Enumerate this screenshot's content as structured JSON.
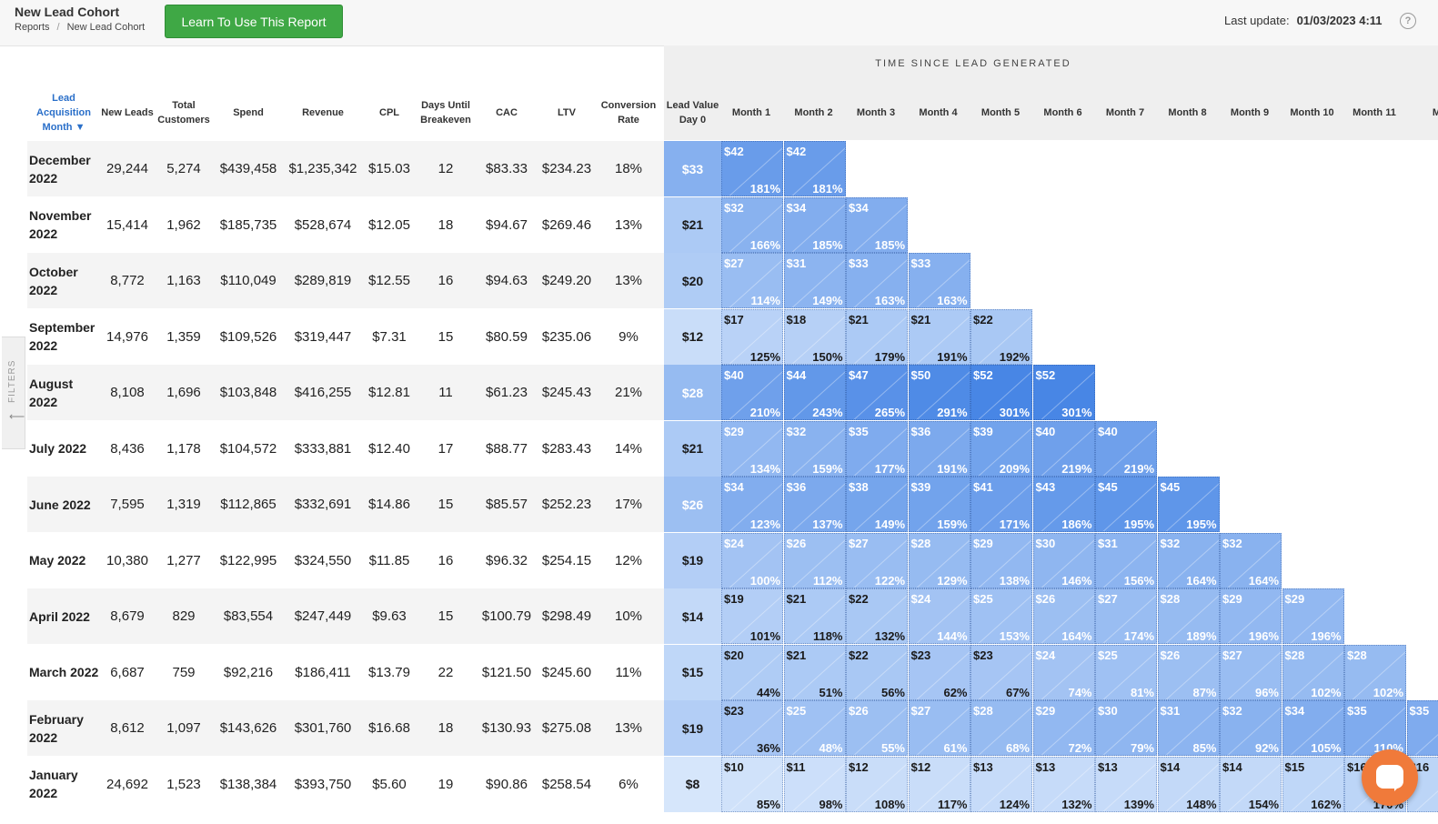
{
  "header": {
    "title": "New Lead Cohort",
    "breadcrumbs": [
      "Reports",
      "New Lead Cohort"
    ],
    "learn_button": "Learn To Use This Report",
    "last_update_label": "Last update:",
    "last_update_value": "01/03/2023 4:11",
    "help_icon": "?"
  },
  "filters_tab": {
    "label": "FILTERS",
    "arrow": "⟵"
  },
  "time_header": "TIME SINCE LEAD GENERATED",
  "columns": {
    "month": "Lead Acquisition Month ▼",
    "new_leads": "New Leads",
    "total_customers": "Total Customers",
    "spend": "Spend",
    "revenue": "Revenue",
    "cpl": "CPL",
    "days_breakeven": "Days Until Breakeven",
    "cac": "CAC",
    "ltv": "LTV",
    "conversion": "Conversion Rate",
    "day0": "Lead Value Day 0",
    "months": [
      "Month 1",
      "Month 2",
      "Month 3",
      "Month 4",
      "Month 5",
      "Month 6",
      "Month 7",
      "Month 8",
      "Month 9",
      "Month 10",
      "Month 11",
      "M"
    ]
  },
  "rows": [
    {
      "month": "December 2022",
      "new_leads": "29,244",
      "total_customers": "5,274",
      "spend": "$439,458",
      "revenue": "$1,235,342",
      "cpl": "$15.03",
      "days": "12",
      "cac": "$83.33",
      "ltv": "$234.23",
      "conv": "18%",
      "day0": "$33",
      "cells": [
        [
          "$42",
          "181%"
        ],
        [
          "$42",
          "181%"
        ]
      ]
    },
    {
      "month": "November 2022",
      "new_leads": "15,414",
      "total_customers": "1,962",
      "spend": "$185,735",
      "revenue": "$528,674",
      "cpl": "$12.05",
      "days": "18",
      "cac": "$94.67",
      "ltv": "$269.46",
      "conv": "13%",
      "day0": "$21",
      "cells": [
        [
          "$32",
          "166%"
        ],
        [
          "$34",
          "185%"
        ],
        [
          "$34",
          "185%"
        ]
      ]
    },
    {
      "month": "October 2022",
      "new_leads": "8,772",
      "total_customers": "1,163",
      "spend": "$110,049",
      "revenue": "$289,819",
      "cpl": "$12.55",
      "days": "16",
      "cac": "$94.63",
      "ltv": "$249.20",
      "conv": "13%",
      "day0": "$20",
      "cells": [
        [
          "$27",
          "114%"
        ],
        [
          "$31",
          "149%"
        ],
        [
          "$33",
          "163%"
        ],
        [
          "$33",
          "163%"
        ]
      ]
    },
    {
      "month": "September 2022",
      "new_leads": "14,976",
      "total_customers": "1,359",
      "spend": "$109,526",
      "revenue": "$319,447",
      "cpl": "$7.31",
      "days": "15",
      "cac": "$80.59",
      "ltv": "$235.06",
      "conv": "9%",
      "day0": "$12",
      "cells": [
        [
          "$17",
          "125%"
        ],
        [
          "$18",
          "150%"
        ],
        [
          "$21",
          "179%"
        ],
        [
          "$21",
          "191%"
        ],
        [
          "$22",
          "192%"
        ]
      ]
    },
    {
      "month": "August 2022",
      "new_leads": "8,108",
      "total_customers": "1,696",
      "spend": "$103,848",
      "revenue": "$416,255",
      "cpl": "$12.81",
      "days": "11",
      "cac": "$61.23",
      "ltv": "$245.43",
      "conv": "21%",
      "day0": "$28",
      "cells": [
        [
          "$40",
          "210%"
        ],
        [
          "$44",
          "243%"
        ],
        [
          "$47",
          "265%"
        ],
        [
          "$50",
          "291%"
        ],
        [
          "$52",
          "301%"
        ],
        [
          "$52",
          "301%"
        ]
      ]
    },
    {
      "month": "July 2022",
      "new_leads": "8,436",
      "total_customers": "1,178",
      "spend": "$104,572",
      "revenue": "$333,881",
      "cpl": "$12.40",
      "days": "17",
      "cac": "$88.77",
      "ltv": "$283.43",
      "conv": "14%",
      "day0": "$21",
      "cells": [
        [
          "$29",
          "134%"
        ],
        [
          "$32",
          "159%"
        ],
        [
          "$35",
          "177%"
        ],
        [
          "$36",
          "191%"
        ],
        [
          "$39",
          "209%"
        ],
        [
          "$40",
          "219%"
        ],
        [
          "$40",
          "219%"
        ]
      ]
    },
    {
      "month": "June 2022",
      "new_leads": "7,595",
      "total_customers": "1,319",
      "spend": "$112,865",
      "revenue": "$332,691",
      "cpl": "$14.86",
      "days": "15",
      "cac": "$85.57",
      "ltv": "$252.23",
      "conv": "17%",
      "day0": "$26",
      "cells": [
        [
          "$34",
          "123%"
        ],
        [
          "$36",
          "137%"
        ],
        [
          "$38",
          "149%"
        ],
        [
          "$39",
          "159%"
        ],
        [
          "$41",
          "171%"
        ],
        [
          "$43",
          "186%"
        ],
        [
          "$45",
          "195%"
        ],
        [
          "$45",
          "195%"
        ]
      ]
    },
    {
      "month": "May 2022",
      "new_leads": "10,380",
      "total_customers": "1,277",
      "spend": "$122,995",
      "revenue": "$324,550",
      "cpl": "$11.85",
      "days": "16",
      "cac": "$96.32",
      "ltv": "$254.15",
      "conv": "12%",
      "day0": "$19",
      "cells": [
        [
          "$24",
          "100%"
        ],
        [
          "$26",
          "112%"
        ],
        [
          "$27",
          "122%"
        ],
        [
          "$28",
          "129%"
        ],
        [
          "$29",
          "138%"
        ],
        [
          "$30",
          "146%"
        ],
        [
          "$31",
          "156%"
        ],
        [
          "$32",
          "164%"
        ],
        [
          "$32",
          "164%"
        ]
      ]
    },
    {
      "month": "April 2022",
      "new_leads": "8,679",
      "total_customers": "829",
      "spend": "$83,554",
      "revenue": "$247,449",
      "cpl": "$9.63",
      "days": "15",
      "cac": "$100.79",
      "ltv": "$298.49",
      "conv": "10%",
      "day0": "$14",
      "cells": [
        [
          "$19",
          "101%"
        ],
        [
          "$21",
          "118%"
        ],
        [
          "$22",
          "132%"
        ],
        [
          "$24",
          "144%"
        ],
        [
          "$25",
          "153%"
        ],
        [
          "$26",
          "164%"
        ],
        [
          "$27",
          "174%"
        ],
        [
          "$28",
          "189%"
        ],
        [
          "$29",
          "196%"
        ],
        [
          "$29",
          "196%"
        ]
      ]
    },
    {
      "month": "March 2022",
      "new_leads": "6,687",
      "total_customers": "759",
      "spend": "$92,216",
      "revenue": "$186,411",
      "cpl": "$13.79",
      "days": "22",
      "cac": "$121.50",
      "ltv": "$245.60",
      "conv": "11%",
      "day0": "$15",
      "cells": [
        [
          "$20",
          "44%"
        ],
        [
          "$21",
          "51%"
        ],
        [
          "$22",
          "56%"
        ],
        [
          "$23",
          "62%"
        ],
        [
          "$23",
          "67%"
        ],
        [
          "$24",
          "74%"
        ],
        [
          "$25",
          "81%"
        ],
        [
          "$26",
          "87%"
        ],
        [
          "$27",
          "96%"
        ],
        [
          "$28",
          "102%"
        ],
        [
          "$28",
          "102%"
        ]
      ]
    },
    {
      "month": "February 2022",
      "new_leads": "8,612",
      "total_customers": "1,097",
      "spend": "$143,626",
      "revenue": "$301,760",
      "cpl": "$16.68",
      "days": "18",
      "cac": "$130.93",
      "ltv": "$275.08",
      "conv": "13%",
      "day0": "$19",
      "cells": [
        [
          "$23",
          "36%"
        ],
        [
          "$25",
          "48%"
        ],
        [
          "$26",
          "55%"
        ],
        [
          "$27",
          "61%"
        ],
        [
          "$28",
          "68%"
        ],
        [
          "$29",
          "72%"
        ],
        [
          "$30",
          "79%"
        ],
        [
          "$31",
          "85%"
        ],
        [
          "$32",
          "92%"
        ],
        [
          "$34",
          "105%"
        ],
        [
          "$35",
          "110%"
        ],
        [
          "$35",
          ""
        ]
      ]
    },
    {
      "month": "January 2022",
      "new_leads": "24,692",
      "total_customers": "1,523",
      "spend": "$138,384",
      "revenue": "$393,750",
      "cpl": "$5.60",
      "days": "19",
      "cac": "$90.86",
      "ltv": "$258.54",
      "conv": "6%",
      "day0": "$8",
      "cells": [
        [
          "$10",
          "85%"
        ],
        [
          "$11",
          "98%"
        ],
        [
          "$12",
          "108%"
        ],
        [
          "$12",
          "117%"
        ],
        [
          "$13",
          "124%"
        ],
        [
          "$13",
          "132%"
        ],
        [
          "$13",
          "139%"
        ],
        [
          "$14",
          "148%"
        ],
        [
          "$14",
          "154%"
        ],
        [
          "$15",
          "162%"
        ],
        [
          "$16",
          "170%"
        ],
        [
          "$16",
          ""
        ]
      ]
    }
  ],
  "colors": {
    "button_green": "#3fa845",
    "sort_blue": "#2a6fc9",
    "heat_light": "#d4e6fb",
    "heat_dark": "#4a8ee8",
    "chat_orange": "#f07a3a"
  }
}
